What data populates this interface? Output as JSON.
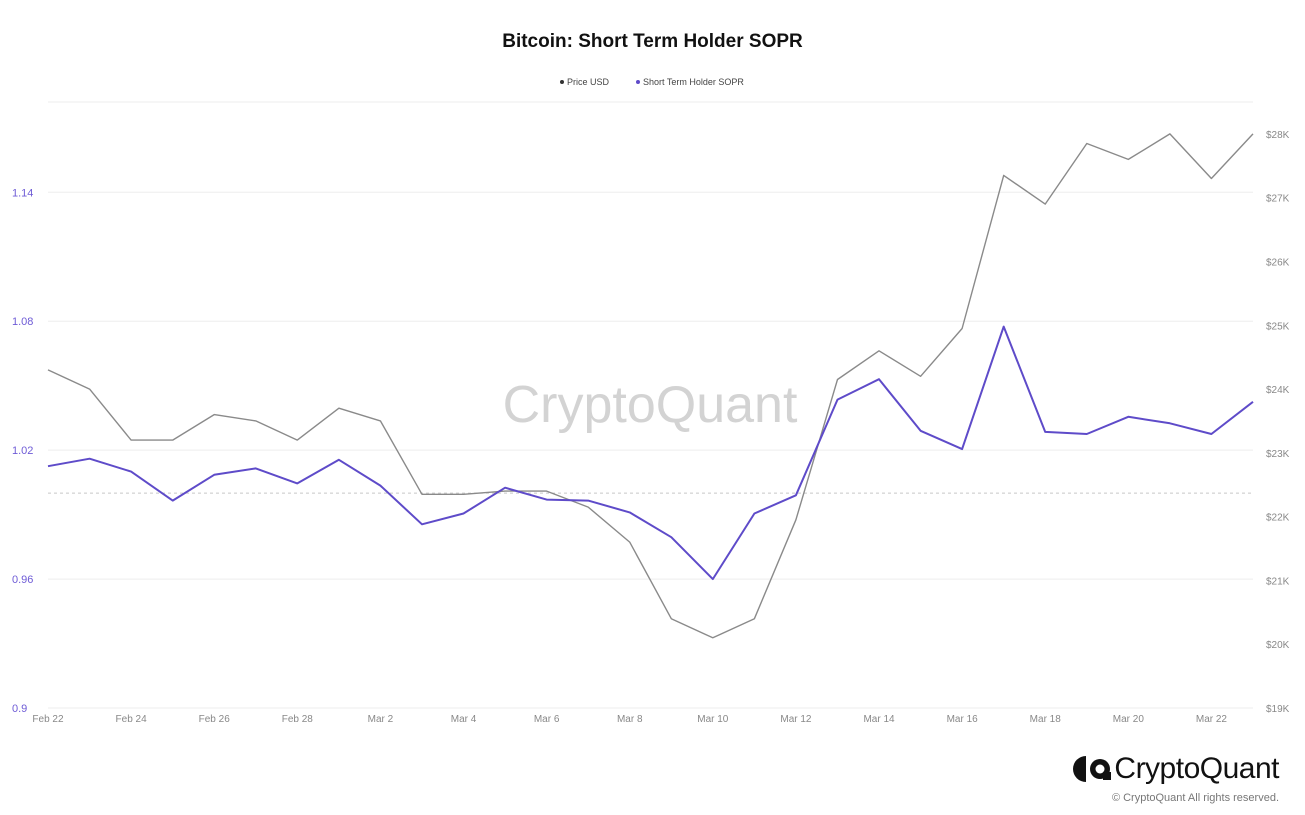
{
  "chart_data": {
    "type": "line",
    "title": "Bitcoin: Short Term Holder SOPR",
    "legend": [
      "Price USD",
      "Short Term Holder SOPR"
    ],
    "legend_placement": "top-center",
    "watermark": "CryptoQuant",
    "x": [
      "Feb 22",
      "Feb 23",
      "Feb 24",
      "Feb 25",
      "Feb 26",
      "Feb 27",
      "Feb 28",
      "Mar 1",
      "Mar 2",
      "Mar 3",
      "Mar 4",
      "Mar 5",
      "Mar 6",
      "Mar 7",
      "Mar 8",
      "Mar 9",
      "Mar 10",
      "Mar 11",
      "Mar 12",
      "Mar 13",
      "Mar 14",
      "Mar 15",
      "Mar 16",
      "Mar 17",
      "Mar 18",
      "Mar 19",
      "Mar 20",
      "Mar 21",
      "Mar 22",
      "Mar 23"
    ],
    "x_ticks": [
      "Feb 22",
      "Feb 24",
      "Feb 26",
      "Feb 28",
      "Mar 2",
      "Mar 4",
      "Mar 6",
      "Mar 8",
      "Mar 10",
      "Mar 12",
      "Mar 14",
      "Mar 16",
      "Mar 18",
      "Mar 20",
      "Mar 22"
    ],
    "y_left": {
      "ticks": [
        "0.9",
        "0.96",
        "1.02",
        "1.08",
        "1.14"
      ],
      "range": [
        0.9,
        1.182
      ]
    },
    "y_right": {
      "ticks": [
        "$19K",
        "$20K",
        "$21K",
        "$22K",
        "$23K",
        "$24K",
        "$25K",
        "$26K",
        "$27K",
        "$28K"
      ],
      "range": [
        19000,
        28500
      ]
    },
    "series": [
      {
        "name": "Price USD",
        "axis": "right",
        "color": "#8a8a8a",
        "values": [
          24300,
          24000,
          23200,
          23200,
          23600,
          23500,
          23200,
          23700,
          23500,
          22350,
          22350,
          22400,
          22400,
          22150,
          21600,
          20400,
          20100,
          20400,
          21950,
          24150,
          24600,
          24200,
          24950,
          27350,
          26900,
          27850,
          27600,
          28000,
          27300,
          28000
        ]
      },
      {
        "name": "Short Term Holder SOPR",
        "axis": "left",
        "color": "#5e4bc9",
        "values": [
          1.0125,
          1.016,
          1.01,
          0.9965,
          1.0085,
          1.0115,
          1.0045,
          1.0155,
          1.0035,
          0.9855,
          0.9905,
          1.0025,
          0.997,
          0.9965,
          0.991,
          0.9795,
          0.96,
          0.9905,
          0.999,
          1.0435,
          1.053,
          1.029,
          1.0205,
          1.0775,
          1.0285,
          1.0275,
          1.0355,
          1.0325,
          1.0275,
          1.0425
        ]
      }
    ],
    "reference_line": {
      "axis": "left",
      "value": 1.0
    },
    "grid": true
  },
  "footer": {
    "brand": "CryptoQuant",
    "copyright": "© CryptoQuant All rights reserved."
  }
}
